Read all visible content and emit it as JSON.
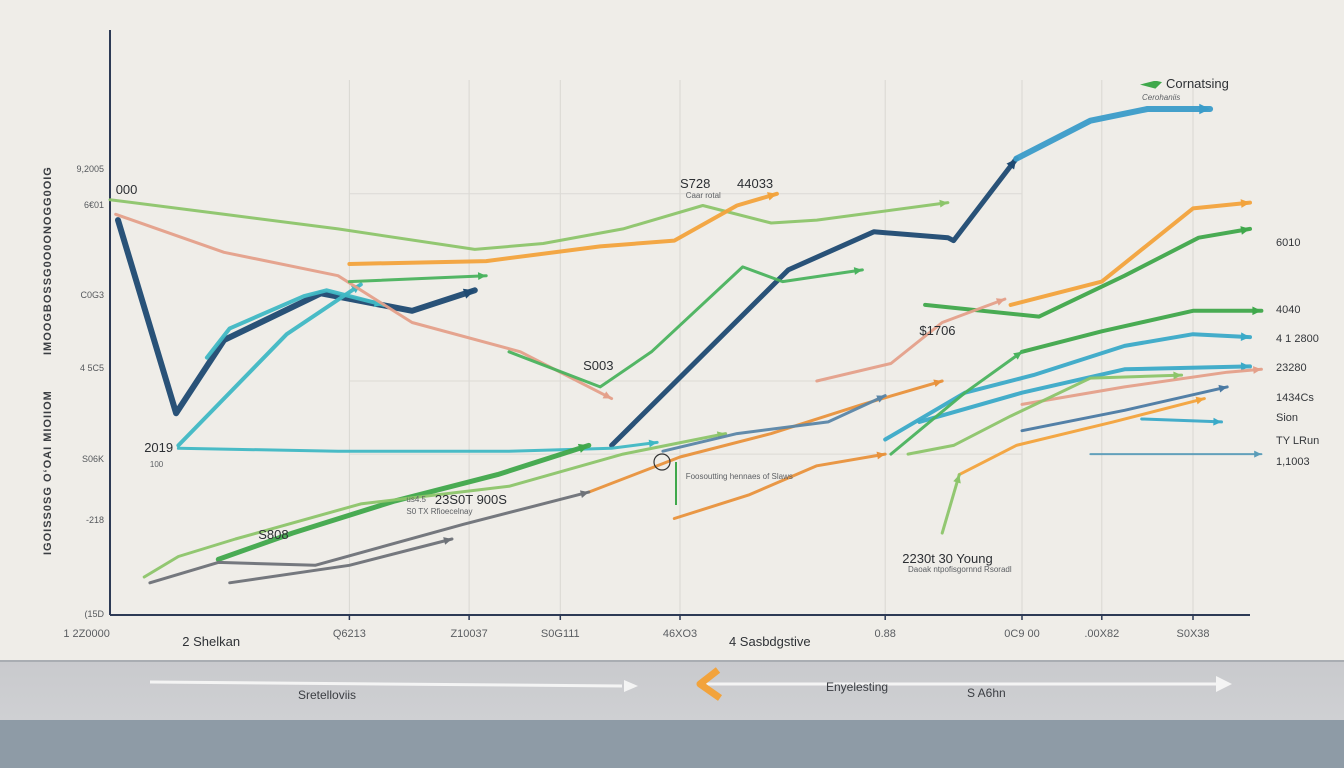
{
  "chart_data": {
    "type": "line",
    "title": "",
    "legend": {
      "label": "Cornatsing",
      "sublabel": "Cerohaniis",
      "placement": "top-right"
    },
    "y_axis_titles": [
      "IMOOGBOSSG0O0ONOGG0OIG",
      "IGOISS0SG OʻOAI MIOIIOM"
    ],
    "xlim": [
      0,
      100
    ],
    "ylim": [
      0,
      100
    ],
    "grid": true,
    "y_ticks": [
      {
        "label": "9,2005",
        "y": 76
      },
      {
        "label": "6€01",
        "y": 70
      },
      {
        "label": "C0G3",
        "y": 54.5
      },
      {
        "label": "4 5C5",
        "y": 42
      },
      {
        "label": "S06K",
        "y": 26.5
      },
      {
        "label": "-218",
        "y": 16
      },
      {
        "label": "(15D",
        "y": 0
      }
    ],
    "x_ticks": [
      {
        "label": "1 2Z0000",
        "x": -1
      },
      {
        "label": "Q6213",
        "x": 21
      },
      {
        "label": "Z10037",
        "x": 31.5
      },
      {
        "label": "S0G111",
        "x": 39.5
      },
      {
        "label": "46XO3",
        "x": 50
      },
      {
        "label": "0.88",
        "x": 68
      },
      {
        "label": "0C9 00",
        "x": 80
      },
      {
        "label": ".00X82",
        "x": 87
      },
      {
        "label": "S0X38",
        "x": 95
      }
    ],
    "x_categories": [
      {
        "label": "2 Shelkan",
        "x": 8
      },
      {
        "label": "4 Sasbdgstive",
        "x": 57
      }
    ],
    "annotations": [
      {
        "text": "000",
        "x": 0.5,
        "y": 74,
        "size": "big"
      },
      {
        "text": "2019",
        "x": 3,
        "y": 30,
        "size": "big"
      },
      {
        "text": "100",
        "x": 3.5,
        "y": 26.5,
        "size": "small"
      },
      {
        "text": "S808",
        "x": 13,
        "y": 15,
        "size": "big"
      },
      {
        "text": "S728",
        "x": 50,
        "y": 75,
        "size": "big"
      },
      {
        "text": "Caar rotal",
        "x": 50.5,
        "y": 72.5,
        "size": "small"
      },
      {
        "text": "44033",
        "x": 55,
        "y": 75,
        "size": "big"
      },
      {
        "text": "S003",
        "x": 41.5,
        "y": 44,
        "size": "big"
      },
      {
        "text": "23S0T 900S",
        "x": 28.5,
        "y": 21,
        "size": "big"
      },
      {
        "text": "us4.5",
        "x": 26,
        "y": 20.5,
        "size": "small"
      },
      {
        "text": "S0 TX Rfioecelnay",
        "x": 26,
        "y": 18.5,
        "size": "small"
      },
      {
        "text": "Foosoutting hennaes of Slaws",
        "x": 50.5,
        "y": 24.5,
        "size": "small"
      },
      {
        "text": "$1706",
        "x": 71,
        "y": 50,
        "size": "big"
      },
      {
        "text": "2230t 30 Young",
        "x": 69.5,
        "y": 11,
        "size": "big"
      },
      {
        "text": "Daoak ntpofisgornnd Rsoradl",
        "x": 70,
        "y": 8.5,
        "size": "small"
      }
    ],
    "right_labels": [
      {
        "text": "6010",
        "y": 63.5
      },
      {
        "text": "4040",
        "y": 52
      },
      {
        "text": "4 1 2800",
        "y": 47
      },
      {
        "text": "23280",
        "y": 42
      },
      {
        "text": "1434Cs",
        "y": 37
      },
      {
        "text": "Sion",
        "y": 33.5
      },
      {
        "text": "TY LRun",
        "y": 29.5
      },
      {
        "text": "1,1003",
        "y": 26
      }
    ],
    "series": [
      {
        "name": "navy",
        "color": "#1e4a72",
        "width": 6,
        "points": [
          [
            0.7,
            67.5
          ],
          [
            5.8,
            34.5
          ],
          [
            10,
            47
          ],
          [
            18.5,
            55
          ],
          [
            26.5,
            52
          ],
          [
            32,
            55.5
          ]
        ]
      },
      {
        "name": "navy-rise",
        "color": "#1e4a72",
        "width": 5,
        "points": [
          [
            44,
            29
          ],
          [
            59.5,
            59
          ],
          [
            67,
            65.5
          ],
          [
            73.5,
            64.5
          ],
          [
            74,
            64
          ],
          [
            79.5,
            78
          ]
        ]
      },
      {
        "name": "blue-top",
        "color": "#3a9cc9",
        "width": 6,
        "points": [
          [
            79.5,
            78
          ],
          [
            86,
            84.5
          ],
          [
            91,
            86.5
          ],
          [
            96.5,
            86.5
          ]
        ]
      },
      {
        "name": "teal-rise",
        "color": "#3fb8c4",
        "width": 4,
        "points": [
          [
            6,
            29
          ],
          [
            15.5,
            48
          ],
          [
            22,
            56.5
          ]
        ]
      },
      {
        "name": "teal-zig",
        "color": "#3fb8c4",
        "width": 4,
        "points": [
          [
            8.5,
            44
          ],
          [
            10.5,
            49
          ],
          [
            17,
            54.5
          ],
          [
            19,
            55.5
          ],
          [
            24,
            53
          ]
        ]
      },
      {
        "name": "teal-flat",
        "color": "#3fb8c4",
        "width": 3,
        "points": [
          [
            6,
            28.5
          ],
          [
            20,
            28
          ],
          [
            35,
            28
          ],
          [
            44,
            28.5
          ],
          [
            48,
            29.5
          ]
        ]
      },
      {
        "name": "green-light-top",
        "color": "#8cc56a",
        "width": 3,
        "points": [
          [
            0,
            71
          ],
          [
            10,
            68.5
          ],
          [
            20,
            66
          ],
          [
            32,
            62.5
          ],
          [
            38,
            63.5
          ],
          [
            45,
            66
          ],
          [
            52,
            70
          ],
          [
            58,
            67
          ],
          [
            62,
            67.5
          ],
          [
            73.5,
            70.5
          ]
        ]
      },
      {
        "name": "salmon-top",
        "color": "#e4a08a",
        "width": 3,
        "points": [
          [
            0.5,
            68.5
          ],
          [
            10,
            62
          ],
          [
            20,
            58
          ],
          [
            26.5,
            50
          ],
          [
            36,
            45
          ],
          [
            44,
            37
          ]
        ]
      },
      {
        "name": "orange-top",
        "color": "#f2a33c",
        "width": 4,
        "points": [
          [
            21,
            60
          ],
          [
            33,
            60.5
          ],
          [
            43,
            63
          ],
          [
            49.5,
            64
          ],
          [
            55,
            70
          ],
          [
            58.5,
            72
          ]
        ]
      },
      {
        "name": "green-arrow",
        "color": "#4ab35e",
        "width": 3,
        "points": [
          [
            21,
            57
          ],
          [
            33,
            58
          ]
        ]
      },
      {
        "name": "green-mid-v",
        "color": "#4ab35e",
        "width": 3,
        "points": [
          [
            35,
            45
          ],
          [
            43,
            39
          ],
          [
            47.5,
            45
          ],
          [
            55.5,
            59.5
          ],
          [
            59,
            57
          ],
          [
            66,
            59
          ]
        ]
      },
      {
        "name": "green-bottom",
        "color": "#3fa84b",
        "width": 5,
        "points": [
          [
            9.5,
            9.5
          ],
          [
            16,
            14
          ],
          [
            25,
            19.5
          ],
          [
            34,
            24
          ],
          [
            42,
            29
          ]
        ]
      },
      {
        "name": "green-lower-rise",
        "color": "#8cc56a",
        "width": 3,
        "points": [
          [
            3,
            6.5
          ],
          [
            6,
            10
          ],
          [
            11,
            13
          ],
          [
            22,
            19
          ],
          [
            35,
            22
          ],
          [
            45,
            27.5
          ],
          [
            54,
            31
          ]
        ]
      },
      {
        "name": "orange-mid",
        "color": "#e8923c",
        "width": 3,
        "points": [
          [
            42,
            21
          ],
          [
            50,
            27
          ],
          [
            58,
            31
          ],
          [
            66,
            36
          ],
          [
            73,
            40
          ]
        ]
      },
      {
        "name": "orange-low",
        "color": "#e8923c",
        "width": 3,
        "points": [
          [
            49.5,
            16.5
          ],
          [
            56,
            20.5
          ],
          [
            62,
            25.5
          ],
          [
            68,
            27.5
          ]
        ]
      },
      {
        "name": "steelblue-mid",
        "color": "#5a86a8",
        "width": 3,
        "points": [
          [
            48.5,
            28
          ],
          [
            55,
            31
          ],
          [
            63,
            33
          ],
          [
            68,
            37.5
          ]
        ]
      },
      {
        "name": "gray-bottom",
        "color": "#6e7278",
        "width": 3,
        "points": [
          [
            3.5,
            5.5
          ],
          [
            9.5,
            9
          ],
          [
            18,
            8.5
          ],
          [
            31,
            15.5
          ],
          [
            42,
            21
          ]
        ]
      },
      {
        "name": "gray-bottom2",
        "color": "#6e7278",
        "width": 3,
        "points": [
          [
            10.5,
            5.5
          ],
          [
            21,
            8.5
          ],
          [
            30,
            13
          ]
        ]
      },
      {
        "name": "green-right1",
        "color": "#3fa84b",
        "width": 4,
        "points": [
          [
            71.5,
            53
          ],
          [
            81.5,
            51
          ],
          [
            89,
            58
          ],
          [
            95.5,
            64.5
          ],
          [
            100,
            66
          ]
        ]
      },
      {
        "name": "green-right2",
        "color": "#3fa84b",
        "width": 4,
        "points": [
          [
            80,
            45
          ],
          [
            87,
            48.5
          ],
          [
            95,
            52
          ],
          [
            101,
            52
          ]
        ]
      },
      {
        "name": "orange-right",
        "color": "#f2a33c",
        "width": 4,
        "points": [
          [
            79,
            53
          ],
          [
            87,
            57
          ],
          [
            95,
            69.5
          ],
          [
            100,
            70.5
          ]
        ]
      },
      {
        "name": "teal-right1",
        "color": "#3aaac8",
        "width": 4,
        "points": [
          [
            68,
            30
          ],
          [
            75,
            38
          ],
          [
            81,
            41
          ],
          [
            89,
            46
          ],
          [
            95,
            48
          ],
          [
            100,
            47.5
          ]
        ]
      },
      {
        "name": "teal-right2",
        "color": "#3aaac8",
        "width": 4,
        "points": [
          [
            71,
            33
          ],
          [
            80,
            38
          ],
          [
            89,
            42
          ],
          [
            100,
            42.5
          ]
        ]
      },
      {
        "name": "salmon-right",
        "color": "#e4a08a",
        "width": 3,
        "points": [
          [
            62,
            40
          ],
          [
            68.5,
            43
          ],
          [
            73,
            50
          ],
          [
            78.5,
            54
          ]
        ]
      },
      {
        "name": "salmon-right2",
        "color": "#e4a08a",
        "width": 3,
        "points": [
          [
            80,
            36
          ],
          [
            89,
            39
          ],
          [
            98,
            41.5
          ],
          [
            101,
            42
          ]
        ]
      },
      {
        "name": "steelblue-right",
        "color": "#4a7aa3",
        "width": 3,
        "points": [
          [
            80,
            31.5
          ],
          [
            89,
            35
          ],
          [
            98,
            39
          ]
        ]
      },
      {
        "name": "orange-right-low",
        "color": "#f2a33c",
        "width": 3,
        "points": [
          [
            74.5,
            24
          ],
          [
            79.5,
            29
          ],
          [
            88,
            33
          ],
          [
            96,
            37
          ]
        ]
      },
      {
        "name": "lightgreen-right",
        "color": "#8cc56a",
        "width": 3,
        "points": [
          [
            70,
            27.5
          ],
          [
            74,
            29
          ],
          [
            79,
            34
          ],
          [
            86,
            40.5
          ],
          [
            94,
            41
          ]
        ]
      },
      {
        "name": "green-right-low",
        "color": "#4ab35e",
        "width": 3,
        "points": [
          [
            68.5,
            27.5
          ],
          [
            75,
            38
          ],
          [
            80,
            45
          ]
        ]
      },
      {
        "name": "lightgreen-stem",
        "color": "#8cc56a",
        "width": 3,
        "points": [
          [
            73,
            14
          ],
          [
            74.5,
            24
          ]
        ]
      },
      {
        "name": "teal-right-low",
        "color": "#3aaac8",
        "width": 3,
        "points": [
          [
            90.5,
            33.5
          ],
          [
            97.5,
            33
          ]
        ]
      },
      {
        "name": "teal-faint",
        "color": "#5a9cb8",
        "width": 2,
        "points": [
          [
            86,
            27.5
          ],
          [
            101,
            27.5
          ]
        ]
      }
    ]
  },
  "bottom_band": {
    "left_label": "Sretelloviis",
    "mid_label": "Enyelesting",
    "right_label": "S A6hn"
  }
}
